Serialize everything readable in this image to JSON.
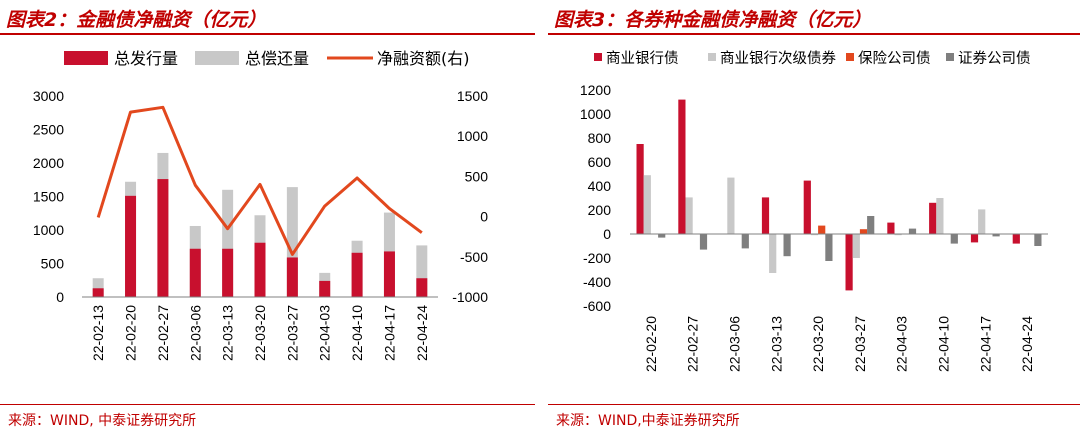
{
  "left": {
    "title": "图表2：金融债净融资（亿元）",
    "source": "来源：WIND, 中泰证券研究所",
    "colors": {
      "bar1": "#c8102e",
      "bar2": "#c8c8c8",
      "line": "#e2481e"
    }
  },
  "right": {
    "title": "图表3：各券种金融债净融资（亿元）",
    "source": "来源：WIND,中泰证券研究所",
    "colors": [
      "#c8102e",
      "#c8c8c8",
      "#e2481e",
      "#7f7f7f"
    ]
  },
  "chart_data": [
    {
      "type": "bar",
      "categories": [
        "22-02-13",
        "22-02-20",
        "22-02-27",
        "22-03-06",
        "22-03-13",
        "22-03-20",
        "22-03-27",
        "22-04-03",
        "22-04-10",
        "22-04-17",
        "22-04-24"
      ],
      "series": [
        {
          "name": "总发行量",
          "kind": "bar",
          "axis": "left",
          "values": [
            130,
            1510,
            1760,
            720,
            720,
            810,
            590,
            240,
            660,
            680,
            280
          ]
        },
        {
          "name": "总偿还量",
          "kind": "bar",
          "axis": "left",
          "values": [
            280,
            1720,
            2150,
            1060,
            1600,
            1220,
            1640,
            360,
            840,
            1260,
            770
          ]
        },
        {
          "name": "净融资额(右)",
          "kind": "line",
          "axis": "right",
          "values": [
            -10,
            1300,
            1360,
            390,
            -150,
            400,
            -470,
            130,
            480,
            100,
            -200
          ]
        }
      ],
      "yticks_left": [
        0,
        500,
        1000,
        1500,
        2000,
        2500,
        3000
      ],
      "yticks_right": [
        -1000,
        -500,
        0,
        500,
        1000,
        1500
      ],
      "ylim_left": [
        0,
        3000
      ],
      "ylim_right": [
        -1000,
        1500
      ],
      "legend": "top"
    },
    {
      "type": "bar",
      "categories": [
        "22-02-20",
        "22-02-27",
        "22-03-06",
        "22-03-13",
        "22-03-20",
        "22-03-27",
        "22-04-03",
        "22-04-10",
        "22-04-17",
        "22-04-24"
      ],
      "series": [
        {
          "name": "商业银行债",
          "values": [
            750,
            1120,
            0,
            305,
            445,
            -470,
            95,
            260,
            -70,
            -80
          ]
        },
        {
          "name": "商业银行次级债券",
          "values": [
            490,
            305,
            470,
            -325,
            -10,
            -200,
            -10,
            300,
            205,
            0
          ]
        },
        {
          "name": "保险公司债",
          "values": [
            0,
            0,
            0,
            0,
            70,
            40,
            0,
            0,
            0,
            0
          ]
        },
        {
          "name": "证券公司债",
          "values": [
            -30,
            -130,
            -120,
            -185,
            -225,
            150,
            45,
            -80,
            -20,
            -100
          ]
        }
      ],
      "yticks": [
        -600,
        -400,
        -200,
        0,
        200,
        400,
        600,
        800,
        1000,
        1200
      ],
      "ylim": [
        -600,
        1200
      ],
      "legend": "top"
    }
  ]
}
